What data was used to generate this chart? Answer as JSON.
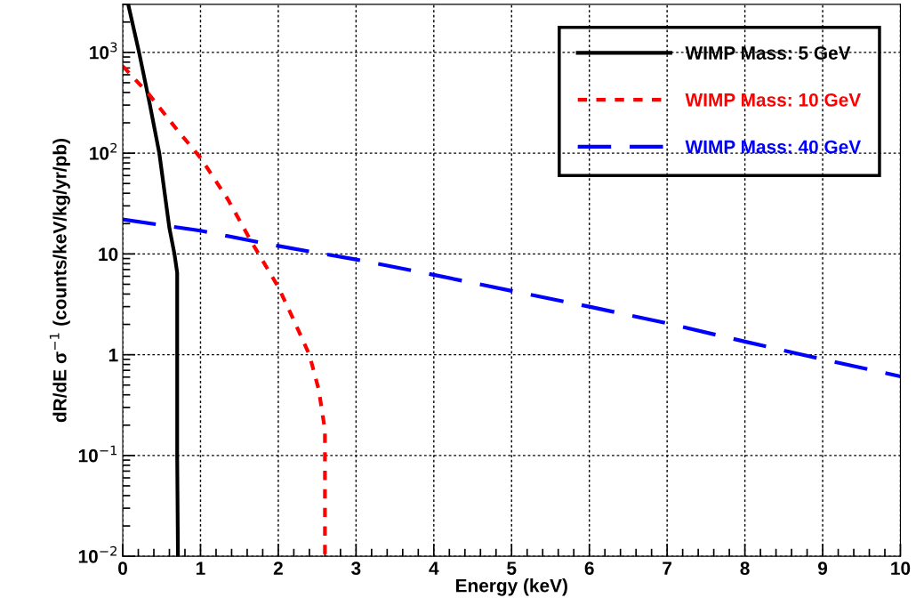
{
  "chart_data": {
    "type": "line",
    "xlabel": "Energy (keV)",
    "ylabel": "dR/dE σ$^{−1}$ (counts/keV/kg/yr/pb)",
    "log": "y",
    "grid": true,
    "legend": "top right",
    "marker": "none",
    "xlim": [
      0,
      10
    ],
    "xticks": [
      0,
      1,
      2,
      3,
      4,
      5,
      6,
      7,
      8,
      9,
      10
    ],
    "ylim": [
      0.01,
      3000
    ],
    "yticks": [
      {
        "value": 0.01,
        "label": "10$^{−2}$"
      },
      {
        "value": 0.1,
        "label": "10$^{−1}$"
      },
      1,
      10,
      {
        "value": 100,
        "label": "10$^{2}$"
      },
      {
        "value": 1000,
        "label": "10$^{3}$"
      }
    ],
    "series": [
      {
        "name": "WIMP Mass: 5 GeV",
        "color": "#000000",
        "line_style": "solid",
        "x": [
          0.07,
          0.21,
          0.35,
          0.47,
          0.6,
          0.665,
          0.7,
          0.7,
          0.71
        ],
        "values": [
          3000,
          1000,
          300,
          100,
          18,
          10,
          6.5,
          0.1,
          0.01
        ]
      },
      {
        "name": "WIMP Mass: 10 GeV",
        "color": "#ff0000",
        "line_style": "dotted",
        "x": [
          0,
          0.33,
          0.7,
          1.0,
          1.35,
          1.65,
          2.0,
          2.2,
          2.4,
          2.52,
          2.6,
          2.6,
          2.6
        ],
        "values": [
          730,
          390,
          170,
          90,
          35,
          13.4,
          4.7,
          2.2,
          1.0,
          0.45,
          0.18,
          0.05,
          0.01
        ]
      },
      {
        "name": "WIMP Mass: 40 GeV",
        "color": "#0000ff",
        "line_style": "dashed",
        "x": [
          0,
          1,
          2,
          3,
          4,
          5,
          6,
          7,
          8,
          9,
          10
        ],
        "values": [
          22,
          17,
          12,
          8.8,
          6.2,
          4.3,
          3.0,
          2.05,
          1.35,
          0.9,
          0.61
        ]
      }
    ]
  }
}
